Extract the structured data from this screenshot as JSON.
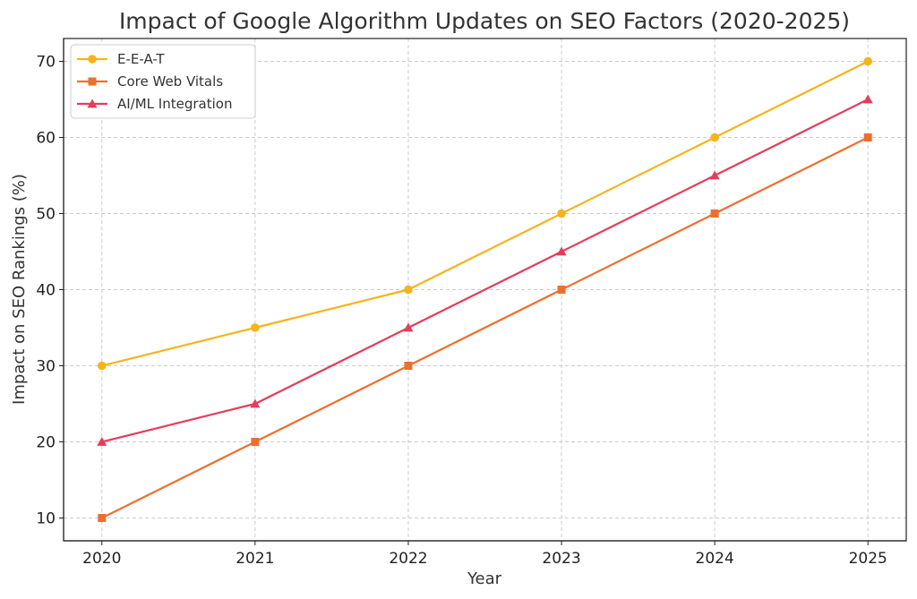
{
  "chart_data": {
    "type": "line",
    "title": "Impact of Google Algorithm Updates on SEO Factors (2020-2025)",
    "xlabel": "Year",
    "ylabel": "Impact on SEO Rankings (%)",
    "x": [
      "2020",
      "2021",
      "2022",
      "2023",
      "2024",
      "2025"
    ],
    "xlim": [
      2019.75,
      2025.25
    ],
    "ylim": [
      7,
      73
    ],
    "yticks": [
      "10",
      "20",
      "30",
      "40",
      "50",
      "60",
      "70"
    ],
    "grid": true,
    "legend_position": "top-left",
    "series": [
      {
        "name": "E-E-A-T",
        "values": [
          30,
          35,
          40,
          50,
          60,
          70
        ],
        "color": "#F5B41C",
        "marker": "circle"
      },
      {
        "name": "Core Web Vitals",
        "values": [
          10,
          20,
          30,
          40,
          50,
          60
        ],
        "color": "#EE6F2D",
        "marker": "square"
      },
      {
        "name": "AI/ML Integration",
        "values": [
          20,
          25,
          35,
          45,
          55,
          65
        ],
        "color": "#E63C5C",
        "marker": "triangle"
      }
    ]
  }
}
